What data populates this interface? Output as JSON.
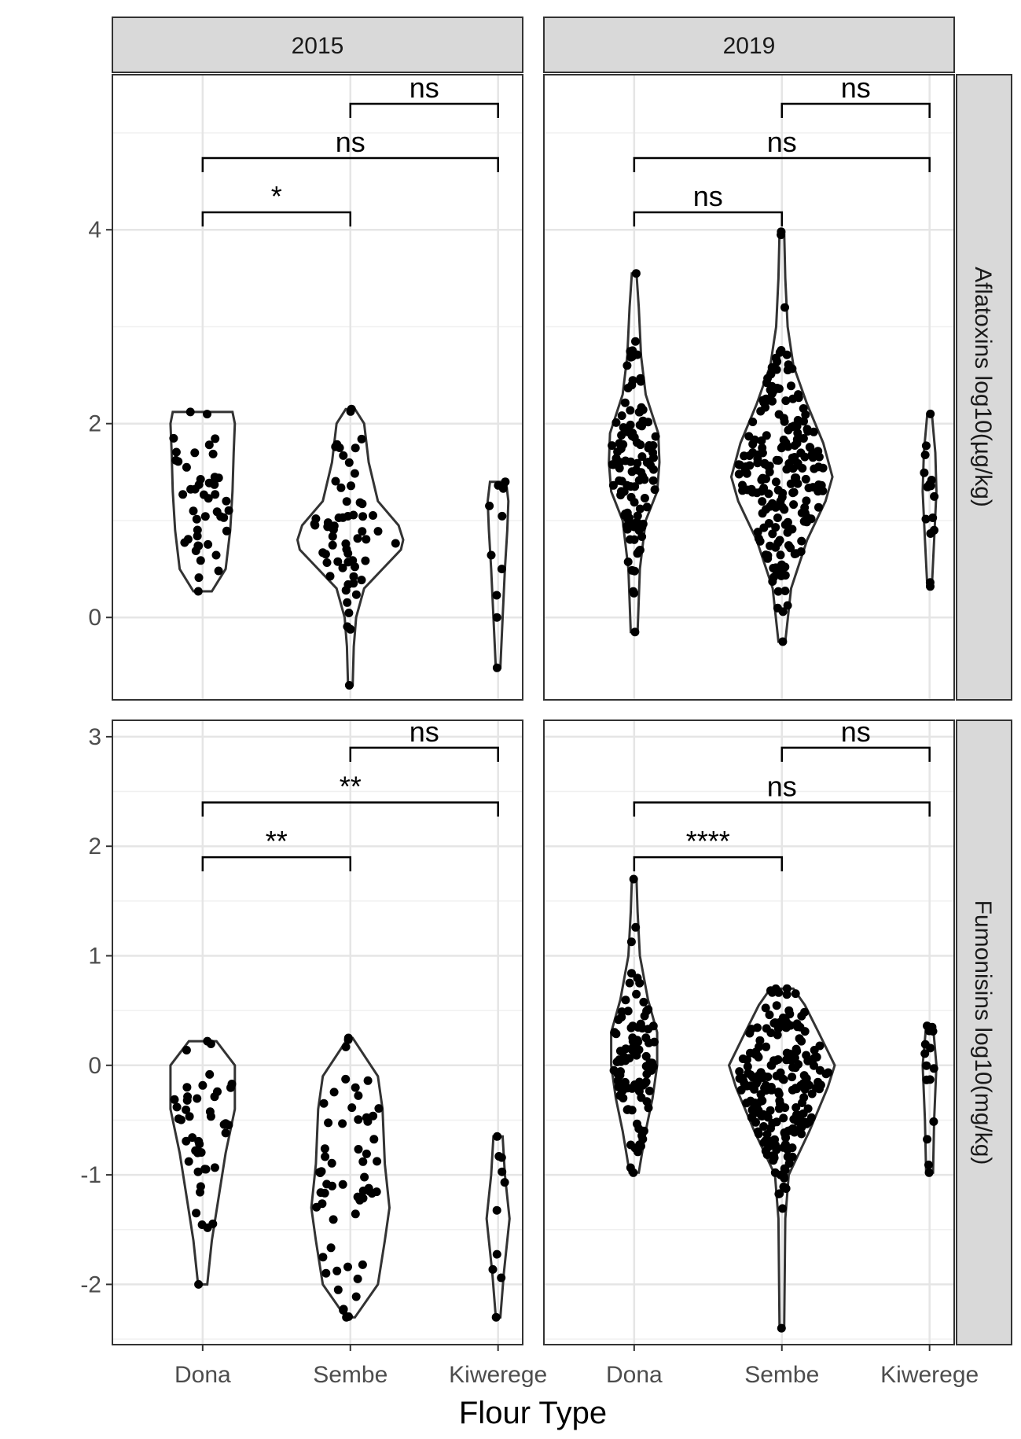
{
  "chart_data": {
    "type": "violin",
    "xlabel": "Flour Type",
    "categories": [
      "Dona",
      "Sembe",
      "Kiwerege"
    ],
    "columns": [
      "2015",
      "2019"
    ],
    "grid": true,
    "panels": [
      {
        "row": 0,
        "col": 0,
        "column_label": "2015",
        "row_label": "Aflatoxins log10(µg/kg)",
        "ylim": [
          -0.85,
          5.6
        ],
        "yticks": [
          0,
          2,
          4
        ],
        "comparisons": [
          {
            "from": "Sembe",
            "to": "Kiwerege",
            "level": 5.3,
            "label": "ns"
          },
          {
            "from": "Dona",
            "to": "Kiwerege",
            "level": 4.74,
            "label": "ns"
          },
          {
            "from": "Dona",
            "to": "Sembe",
            "level": 4.18,
            "label": "*"
          }
        ],
        "groups": [
          {
            "category": "Dona",
            "min": 0.27,
            "max": 2.12,
            "mean": 1.2,
            "sd": 0.5,
            "n": 45,
            "width": 0.22,
            "profile": [
              [
                0.27,
                0.08
              ],
              [
                0.5,
                0.2
              ],
              [
                0.9,
                0.24
              ],
              [
                1.3,
                0.26
              ],
              [
                1.7,
                0.27
              ],
              [
                2.0,
                0.28
              ],
              [
                2.12,
                0.26
              ]
            ]
          },
          {
            "category": "Sembe",
            "min": -0.7,
            "max": 2.15,
            "mean": 0.92,
            "sd": 0.5,
            "n": 60,
            "width": 0.46,
            "profile": [
              [
                -0.7,
                0.02
              ],
              [
                -0.3,
                0.03
              ],
              [
                0.0,
                0.05
              ],
              [
                0.3,
                0.12
              ],
              [
                0.5,
                0.28
              ],
              [
                0.7,
                0.44
              ],
              [
                0.8,
                0.46
              ],
              [
                0.95,
                0.42
              ],
              [
                1.2,
                0.24
              ],
              [
                1.6,
                0.16
              ],
              [
                2.0,
                0.12
              ],
              [
                2.15,
                0.04
              ]
            ]
          },
          {
            "category": "Kiwerege",
            "min": -0.52,
            "max": 1.4,
            "mean": 0.6,
            "sd": 0.5,
            "n": 10,
            "width": 0.1,
            "profile": [
              [
                -0.52,
                0.02
              ],
              [
                0.0,
                0.04
              ],
              [
                0.5,
                0.06
              ],
              [
                0.9,
                0.08
              ],
              [
                1.2,
                0.09
              ],
              [
                1.4,
                0.07
              ]
            ]
          }
        ]
      },
      {
        "row": 0,
        "col": 1,
        "column_label": "2019",
        "row_label": "Aflatoxins log10(µg/kg)",
        "ylim": [
          -0.85,
          5.6
        ],
        "yticks": [
          0,
          2,
          4
        ],
        "comparisons": [
          {
            "from": "Sembe",
            "to": "Kiwerege",
            "level": 5.3,
            "label": "ns"
          },
          {
            "from": "Dona",
            "to": "Kiwerege",
            "level": 4.74,
            "label": "ns"
          },
          {
            "from": "Dona",
            "to": "Sembe",
            "level": 4.18,
            "label": "ns"
          }
        ],
        "groups": [
          {
            "category": "Dona",
            "min": -0.15,
            "max": 3.55,
            "mean": 1.55,
            "sd": 0.6,
            "n": 110,
            "width": 0.22,
            "profile": [
              [
                -0.15,
                0.03
              ],
              [
                0.5,
                0.05
              ],
              [
                1.0,
                0.1
              ],
              [
                1.3,
                0.2
              ],
              [
                1.6,
                0.22
              ],
              [
                1.9,
                0.21
              ],
              [
                2.3,
                0.1
              ],
              [
                2.7,
                0.06
              ],
              [
                3.2,
                0.04
              ],
              [
                3.55,
                0.02
              ]
            ]
          },
          {
            "category": "Sembe",
            "min": -0.25,
            "max": 3.98,
            "mean": 1.45,
            "sd": 0.6,
            "n": 200,
            "width": 0.44,
            "profile": [
              [
                -0.25,
                0.03
              ],
              [
                0.3,
                0.08
              ],
              [
                0.8,
                0.22
              ],
              [
                1.2,
                0.38
              ],
              [
                1.45,
                0.44
              ],
              [
                1.8,
                0.36
              ],
              [
                2.2,
                0.22
              ],
              [
                2.6,
                0.1
              ],
              [
                3.0,
                0.05
              ],
              [
                3.5,
                0.03
              ],
              [
                3.98,
                0.02
              ]
            ]
          },
          {
            "category": "Kiwerege",
            "min": 0.32,
            "max": 2.1,
            "mean": 1.2,
            "sd": 0.45,
            "n": 15,
            "width": 0.06,
            "profile": [
              [
                0.32,
                0.02
              ],
              [
                0.8,
                0.04
              ],
              [
                1.3,
                0.06
              ],
              [
                1.7,
                0.05
              ],
              [
                2.1,
                0.02
              ]
            ]
          }
        ]
      },
      {
        "row": 1,
        "col": 0,
        "column_label": "2015",
        "row_label": "Fumonisins log10(mg/kg)",
        "ylim": [
          -2.55,
          3.15
        ],
        "yticks": [
          -2,
          -1,
          0,
          1,
          2,
          3
        ],
        "comparisons": [
          {
            "from": "Sembe",
            "to": "Kiwerege",
            "level": 2.9,
            "label": "ns"
          },
          {
            "from": "Dona",
            "to": "Kiwerege",
            "level": 2.4,
            "label": "**"
          },
          {
            "from": "Dona",
            "to": "Sembe",
            "level": 1.9,
            "label": "**"
          }
        ],
        "groups": [
          {
            "category": "Dona",
            "min": -2.0,
            "max": 0.22,
            "mean": -0.75,
            "sd": 0.5,
            "n": 45,
            "width": 0.3,
            "profile": [
              [
                -2.0,
                0.04
              ],
              [
                -1.6,
                0.08
              ],
              [
                -1.2,
                0.14
              ],
              [
                -0.8,
                0.2
              ],
              [
                -0.4,
                0.28
              ],
              [
                0.0,
                0.28
              ],
              [
                0.22,
                0.12
              ]
            ]
          },
          {
            "category": "Sembe",
            "min": -2.3,
            "max": 0.25,
            "mean": -1.05,
            "sd": 0.6,
            "n": 60,
            "width": 0.34,
            "profile": [
              [
                -2.3,
                0.04
              ],
              [
                -2.0,
                0.24
              ],
              [
                -1.6,
                0.3
              ],
              [
                -1.3,
                0.34
              ],
              [
                -0.9,
                0.3
              ],
              [
                -0.4,
                0.28
              ],
              [
                -0.1,
                0.24
              ],
              [
                0.25,
                0.02
              ]
            ]
          },
          {
            "category": "Kiwerege",
            "min": -2.3,
            "max": -0.65,
            "mean": -1.4,
            "sd": 0.45,
            "n": 10,
            "width": 0.1,
            "profile": [
              [
                -2.3,
                0.02
              ],
              [
                -1.9,
                0.05
              ],
              [
                -1.4,
                0.1
              ],
              [
                -1.0,
                0.06
              ],
              [
                -0.65,
                0.04
              ]
            ]
          }
        ]
      },
      {
        "row": 1,
        "col": 1,
        "column_label": "2019",
        "row_label": "Fumonisins log10(mg/kg)",
        "ylim": [
          -2.55,
          3.15
        ],
        "yticks": [
          -2,
          -1,
          0,
          1,
          2,
          3
        ],
        "comparisons": [
          {
            "from": "Sembe",
            "to": "Kiwerege",
            "level": 2.9,
            "label": "ns"
          },
          {
            "from": "Dona",
            "to": "Kiwerege",
            "level": 2.4,
            "label": "ns"
          },
          {
            "from": "Dona",
            "to": "Sembe",
            "level": 1.9,
            "label": "****"
          }
        ],
        "groups": [
          {
            "category": "Dona",
            "min": -0.98,
            "max": 1.7,
            "mean": 0.1,
            "sd": 0.45,
            "n": 100,
            "width": 0.2,
            "profile": [
              [
                -0.98,
                0.04
              ],
              [
                -0.6,
                0.1
              ],
              [
                -0.3,
                0.16
              ],
              [
                0.0,
                0.2
              ],
              [
                0.3,
                0.2
              ],
              [
                0.6,
                0.12
              ],
              [
                1.0,
                0.05
              ],
              [
                1.4,
                0.03
              ],
              [
                1.7,
                0.02
              ]
            ]
          },
          {
            "category": "Sembe",
            "min": -2.4,
            "max": 0.7,
            "mean": -0.2,
            "sd": 0.45,
            "n": 220,
            "width": 0.46,
            "profile": [
              [
                -2.4,
                0.02
              ],
              [
                -1.4,
                0.03
              ],
              [
                -1.0,
                0.06
              ],
              [
                -0.6,
                0.24
              ],
              [
                -0.2,
                0.4
              ],
              [
                0.0,
                0.46
              ],
              [
                0.3,
                0.32
              ],
              [
                0.55,
                0.2
              ],
              [
                0.7,
                0.1
              ]
            ]
          },
          {
            "category": "Kiwerege",
            "min": -0.98,
            "max": 0.36,
            "mean": -0.2,
            "sd": 0.4,
            "n": 15,
            "width": 0.05,
            "profile": [
              [
                -0.98,
                0.03
              ],
              [
                -0.5,
                0.04
              ],
              [
                0.0,
                0.06
              ],
              [
                0.36,
                0.03
              ]
            ]
          }
        ]
      }
    ]
  }
}
